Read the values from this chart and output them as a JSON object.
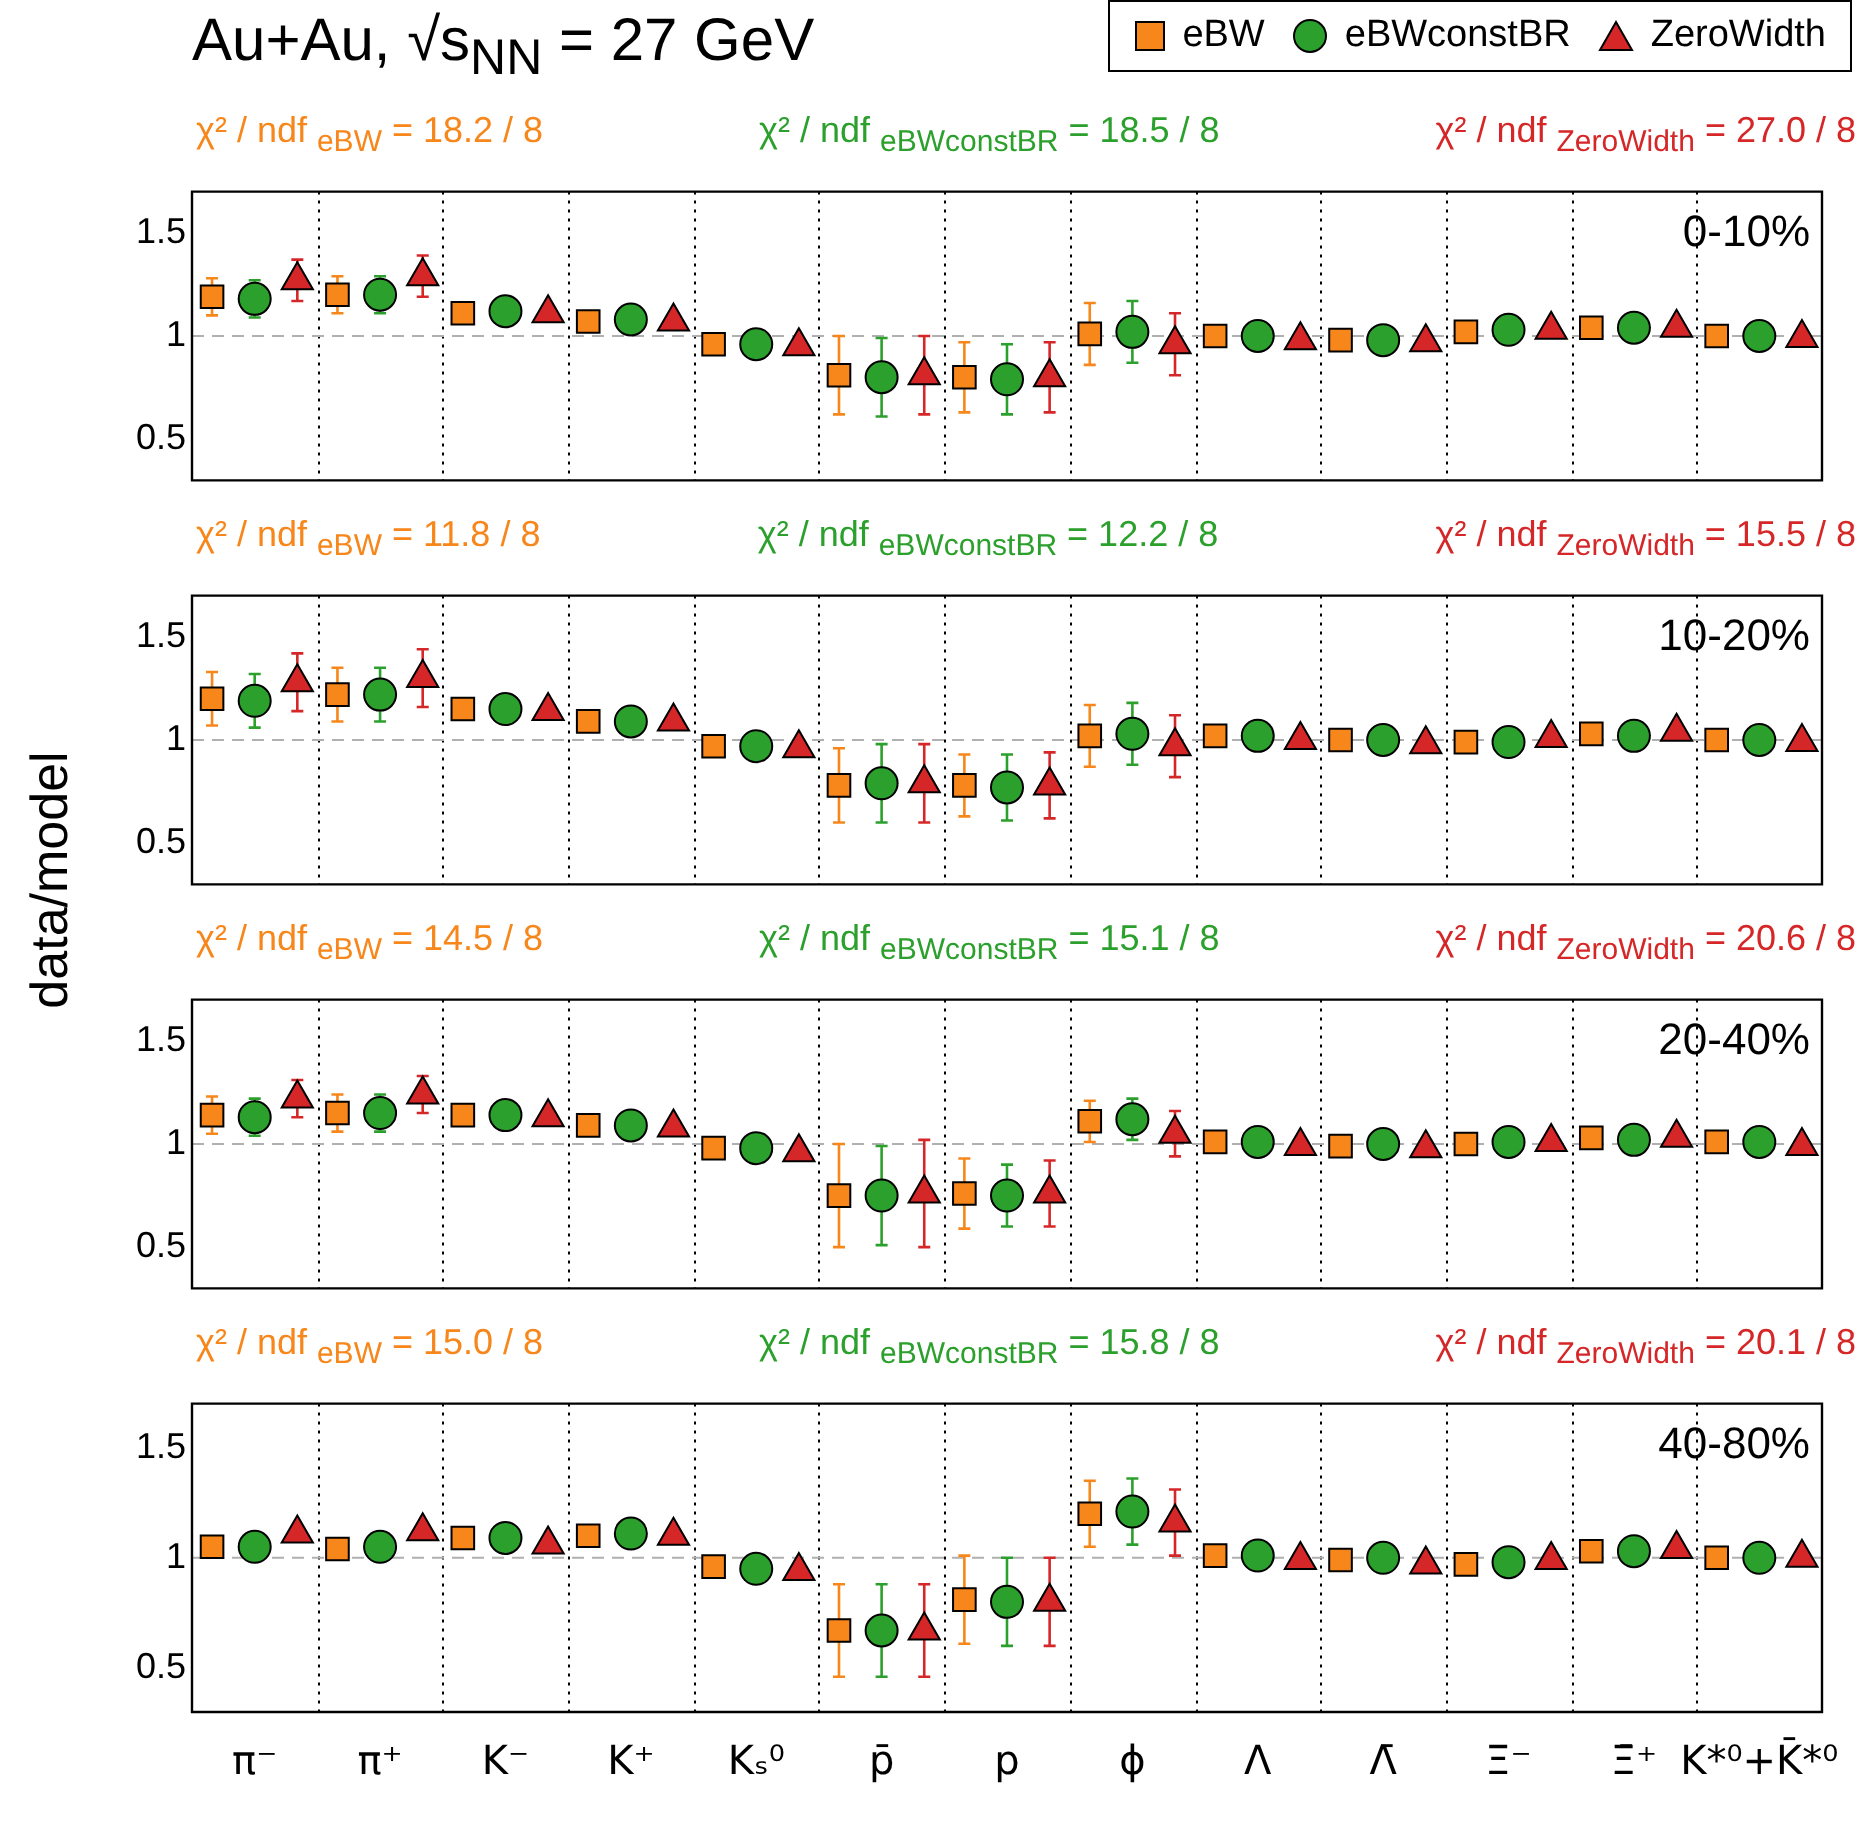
{
  "chart_data": [
    {
      "type": "scatter",
      "title": "Au+Au, √s$_{NN}$ = 27 GeV",
      "subtitle": "0-10%",
      "ylabel": "data/model",
      "legend": "top right",
      "grid": "x",
      "tick_labels": "y",
      "annotations": [
        "χ² / ndf $_{eBW}$ = 18.2 / 8",
        "χ² / ndf $_{eBWconstBR}$ = 18.5 / 8",
        "χ² / ndf $_{ZeroWidth}$ = 27.0 / 8"
      ],
      "categories": [
        null,
        null,
        null,
        null,
        null,
        null,
        null,
        null,
        null,
        null,
        null,
        null,
        null
      ],
      "ylim": [
        0.3,
        1.7
      ],
      "yticks": [
        0.5,
        1,
        1.5
      ],
      "ref_lines": [
        {
          "axis": "y",
          "value": 1,
          "color": "#b0b0b0",
          "line_style": "dashed"
        }
      ],
      "series": [
        {
          "name": "eBW",
          "color": "#f7861b",
          "marker": "square",
          "values": [
            1.19,
            1.2,
            1.11,
            1.07,
            0.96,
            0.81,
            0.8,
            1.01,
            1.0,
            0.98,
            1.02,
            1.04,
            1.0
          ],
          "errors": [
            0.09,
            0.09,
            null,
            null,
            null,
            0.19,
            0.17,
            0.15,
            null,
            null,
            null,
            null,
            null
          ]
        },
        {
          "name": "eBWconstBR",
          "color": "#2ca02c",
          "marker": "circle",
          "values": [
            1.18,
            1.2,
            1.12,
            1.08,
            0.96,
            0.8,
            0.79,
            1.02,
            1.0,
            0.98,
            1.03,
            1.04,
            1.0
          ],
          "errors": [
            0.09,
            0.09,
            null,
            null,
            null,
            0.19,
            0.17,
            0.15,
            null,
            null,
            null,
            null,
            null
          ]
        },
        {
          "name": "ZeroWidth",
          "color": "#d62728",
          "marker": "triangle",
          "values": [
            1.27,
            1.29,
            1.11,
            1.07,
            0.95,
            0.81,
            0.8,
            0.96,
            0.98,
            0.97,
            1.03,
            1.04,
            0.99
          ],
          "errors": [
            0.1,
            0.1,
            null,
            null,
            null,
            0.19,
            0.17,
            0.15,
            null,
            null,
            null,
            null,
            null
          ]
        }
      ]
    },
    {
      "type": "scatter",
      "subtitle": "10-20%",
      "grid": "x",
      "tick_labels": "y",
      "annotations": [
        "χ² / ndf $_{eBW}$ = 11.8 / 8",
        "χ² / ndf $_{eBWconstBR}$ = 12.2 / 8",
        "χ² / ndf $_{ZeroWidth}$ = 15.5 / 8"
      ],
      "categories": [
        null,
        null,
        null,
        null,
        null,
        null,
        null,
        null,
        null,
        null,
        null,
        null,
        null
      ],
      "ylim": [
        0.3,
        1.7
      ],
      "yticks": [
        0.5,
        1,
        1.5
      ],
      "ref_lines": [
        {
          "axis": "y",
          "value": 1,
          "color": "#b0b0b0",
          "line_style": "dashed"
        }
      ],
      "series": [
        {
          "color": "#f7861b",
          "marker": "square",
          "values": [
            1.2,
            1.22,
            1.15,
            1.09,
            0.97,
            0.78,
            0.78,
            1.02,
            1.02,
            1.0,
            0.99,
            1.03,
            1.0
          ],
          "errors": [
            0.13,
            0.13,
            null,
            null,
            null,
            0.18,
            0.15,
            0.15,
            null,
            null,
            null,
            null,
            null
          ]
        },
        {
          "color": "#2ca02c",
          "marker": "circle",
          "values": [
            1.19,
            1.22,
            1.15,
            1.09,
            0.97,
            0.79,
            0.77,
            1.03,
            1.02,
            1.0,
            0.99,
            1.02,
            1.0
          ],
          "errors": [
            0.13,
            0.13,
            null,
            null,
            null,
            0.19,
            0.16,
            0.15,
            null,
            null,
            null,
            null,
            null
          ]
        },
        {
          "color": "#d62728",
          "marker": "triangle",
          "values": [
            1.28,
            1.3,
            1.14,
            1.09,
            0.96,
            0.79,
            0.78,
            0.97,
            1.0,
            0.98,
            1.01,
            1.04,
            0.99
          ],
          "errors": [
            0.14,
            0.14,
            null,
            null,
            null,
            0.19,
            0.16,
            0.15,
            null,
            null,
            null,
            null,
            null
          ]
        }
      ]
    },
    {
      "type": "scatter",
      "subtitle": "20-40%",
      "grid": "x",
      "tick_labels": "y",
      "annotations": [
        "χ² / ndf $_{eBW}$ = 14.5 / 8",
        "χ² / ndf $_{eBWconstBR}$ = 15.1 / 8",
        "χ² / ndf $_{ZeroWidth}$ = 20.6 / 8"
      ],
      "categories": [
        null,
        null,
        null,
        null,
        null,
        null,
        null,
        null,
        null,
        null,
        null,
        null,
        null
      ],
      "ylim": [
        0.3,
        1.7
      ],
      "yticks": [
        0.5,
        1,
        1.5
      ],
      "ref_lines": [
        {
          "axis": "y",
          "value": 1,
          "color": "#b0b0b0",
          "line_style": "dashed"
        }
      ],
      "series": [
        {
          "color": "#f7861b",
          "marker": "square",
          "values": [
            1.14,
            1.15,
            1.14,
            1.09,
            0.98,
            0.75,
            0.76,
            1.11,
            1.01,
            0.99,
            1.0,
            1.03,
            1.01
          ],
          "errors": [
            0.09,
            0.09,
            null,
            null,
            null,
            0.25,
            0.17,
            0.1,
            null,
            null,
            null,
            null,
            null
          ]
        },
        {
          "color": "#2ca02c",
          "marker": "circle",
          "values": [
            1.13,
            1.15,
            1.14,
            1.09,
            0.98,
            0.75,
            0.75,
            1.12,
            1.01,
            1.0,
            1.01,
            1.02,
            1.01
          ],
          "errors": [
            0.09,
            0.09,
            null,
            null,
            null,
            0.24,
            0.15,
            0.1,
            null,
            null,
            null,
            null,
            null
          ]
        },
        {
          "color": "#d62728",
          "marker": "triangle",
          "values": [
            1.22,
            1.24,
            1.13,
            1.08,
            0.96,
            0.76,
            0.76,
            1.05,
            0.99,
            0.98,
            1.01,
            1.03,
            0.99
          ],
          "errors": [
            0.09,
            0.09,
            null,
            null,
            null,
            0.26,
            0.16,
            0.11,
            null,
            null,
            null,
            null,
            null
          ]
        }
      ]
    },
    {
      "type": "scatter",
      "subtitle": "40-80%",
      "grid": "x",
      "annotations": [
        "χ² / ndf $_{eBW}$ = 15.0 / 8",
        "χ² / ndf $_{eBWconstBR}$ = 15.8 / 8",
        "χ² / ndf $_{ZeroWidth}$ = 20.1 / 8"
      ],
      "categories": [
        "π⁻",
        "π⁺",
        "K⁻",
        "K⁺",
        "Kₛ⁰",
        "p̄",
        "p",
        "ϕ",
        "Λ",
        "Λ̄",
        "Ξ⁻",
        "Ξ̄⁺",
        "K*⁰+K̄*⁰"
      ],
      "ylim": [
        0.3,
        1.7
      ],
      "yticks": [
        0.5,
        1,
        1.5
      ],
      "ref_lines": [
        {
          "axis": "y",
          "value": 1,
          "color": "#b0b0b0",
          "line_style": "dashed"
        }
      ],
      "series": [
        {
          "color": "#f7861b",
          "marker": "square",
          "values": [
            1.05,
            1.04,
            1.09,
            1.1,
            0.96,
            0.67,
            0.81,
            1.2,
            1.01,
            0.99,
            0.97,
            1.03,
            1.0
          ],
          "errors": [
            null,
            null,
            null,
            null,
            null,
            0.21,
            0.2,
            0.15,
            null,
            null,
            null,
            null,
            null
          ]
        },
        {
          "color": "#2ca02c",
          "marker": "circle",
          "values": [
            1.05,
            1.05,
            1.09,
            1.11,
            0.95,
            0.67,
            0.8,
            1.21,
            1.01,
            1.0,
            0.98,
            1.03,
            1.0
          ],
          "errors": [
            null,
            null,
            null,
            null,
            null,
            0.21,
            0.2,
            0.15,
            null,
            null,
            null,
            null,
            null
          ]
        },
        {
          "color": "#d62728",
          "marker": "triangle",
          "values": [
            1.11,
            1.12,
            1.06,
            1.1,
            0.94,
            0.67,
            0.8,
            1.16,
            0.99,
            0.97,
            0.99,
            1.04,
            1.0
          ],
          "errors": [
            null,
            null,
            null,
            null,
            null,
            0.21,
            0.2,
            0.15,
            null,
            null,
            null,
            null,
            null
          ]
        }
      ]
    }
  ]
}
